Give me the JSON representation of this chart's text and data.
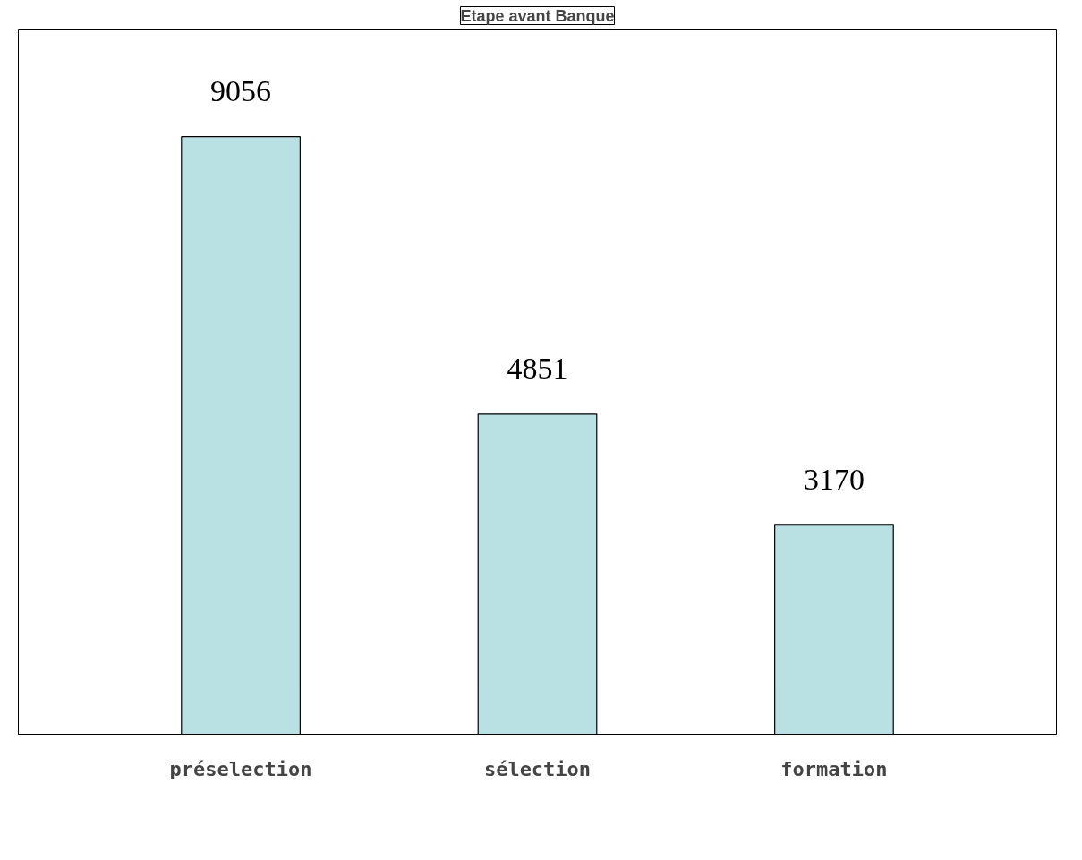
{
  "chart_data": {
    "type": "bar",
    "title": "Etape avant Banque",
    "categories": [
      "préselection",
      "sélection",
      "formation"
    ],
    "values": [
      9056,
      4851,
      3170
    ],
    "color": "#b9e0e3",
    "data_labels": true,
    "grid": false,
    "tick_labels": "x"
  }
}
